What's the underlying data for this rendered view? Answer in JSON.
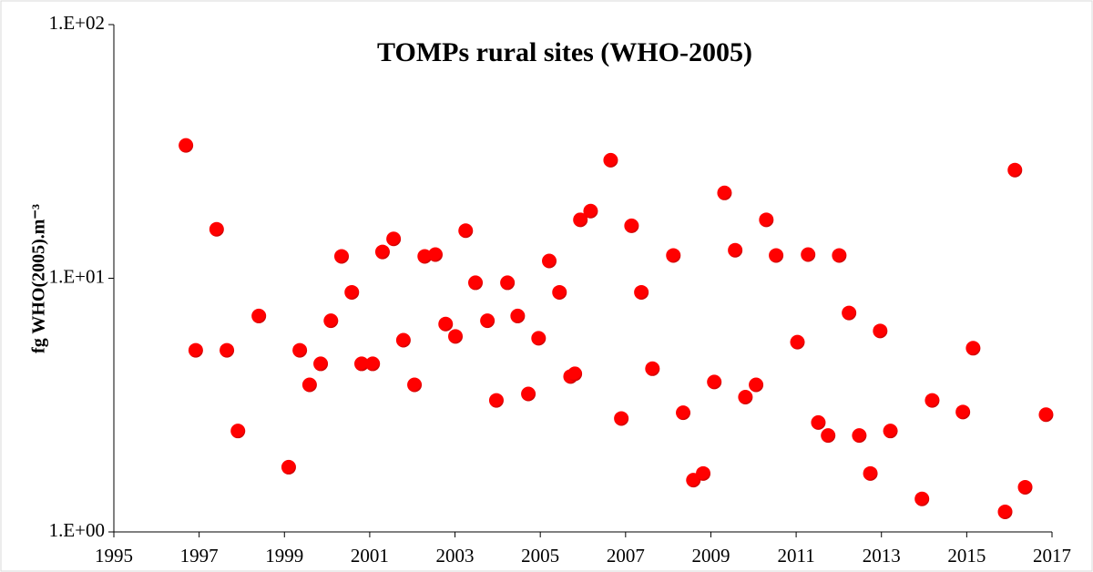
{
  "chart_data": {
    "type": "scatter",
    "title": "TOMPs rural sites (WHO-2005)",
    "y_label": "fg WHO(2005).m⁻³",
    "color": "#ff0000",
    "log_y": true,
    "grid": false,
    "xlim": [
      1995,
      2017
    ],
    "xticks": [
      1995,
      1997,
      1999,
      2001,
      2003,
      2005,
      2007,
      2009,
      2011,
      2013,
      2015,
      2017
    ],
    "ylim": [
      1,
      100
    ],
    "yticks": [
      {
        "value": 1,
        "label": "1.E+00"
      },
      {
        "value": 10,
        "label": "1.E+01"
      },
      {
        "value": 100,
        "label": "1.E+02"
      }
    ],
    "x": [
      1996.69,
      1996.92,
      1997.41,
      1997.65,
      1997.91,
      1998.4,
      1999.1,
      1999.36,
      1999.59,
      1999.85,
      2000.09,
      2000.34,
      2000.58,
      2000.81,
      2001.07,
      2001.3,
      2001.56,
      2001.79,
      2002.05,
      2002.29,
      2002.54,
      2002.78,
      2003.01,
      2003.25,
      2003.48,
      2003.76,
      2003.97,
      2004.23,
      2004.47,
      2004.72,
      2004.96,
      2005.21,
      2005.45,
      2005.71,
      2005.81,
      2005.94,
      2006.18,
      2006.65,
      2006.9,
      2007.14,
      2007.37,
      2007.63,
      2008.12,
      2008.35,
      2008.59,
      2008.82,
      2009.08,
      2009.32,
      2009.57,
      2009.81,
      2010.06,
      2010.3,
      2010.53,
      2011.03,
      2011.28,
      2011.52,
      2011.75,
      2012.01,
      2012.24,
      2012.48,
      2012.74,
      2012.97,
      2013.21,
      2013.95,
      2014.19,
      2014.91,
      2015.15,
      2015.9,
      2016.13,
      2016.37,
      2016.86
    ],
    "values": [
      33.4,
      5.2,
      15.6,
      5.2,
      2.5,
      7.1,
      1.8,
      5.2,
      3.8,
      4.6,
      6.8,
      12.2,
      8.8,
      4.6,
      4.6,
      12.7,
      14.3,
      5.7,
      3.8,
      12.2,
      12.4,
      6.6,
      5.9,
      15.4,
      9.6,
      6.8,
      3.3,
      9.6,
      7.1,
      3.5,
      5.8,
      11.7,
      8.8,
      4.1,
      4.2,
      17.0,
      18.4,
      29.2,
      2.8,
      16.1,
      8.8,
      4.4,
      12.3,
      2.95,
      1.6,
      1.7,
      3.9,
      21.7,
      12.9,
      3.4,
      3.8,
      17.0,
      12.3,
      5.6,
      12.4,
      2.7,
      2.4,
      12.3,
      7.3,
      2.4,
      1.7,
      6.2,
      2.5,
      1.35,
      3.3,
      2.97,
      5.3,
      1.2,
      26.7,
      1.5,
      2.9
    ]
  }
}
